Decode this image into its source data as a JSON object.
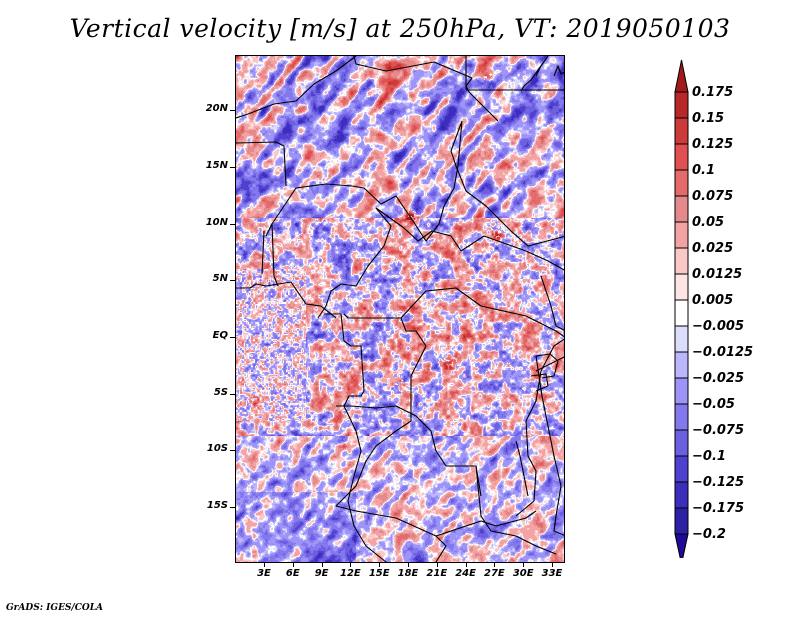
{
  "title": "Vertical velocity [m/s] at 250hPa, VT: 2019050103",
  "footer": "GrADS: IGES/COLA",
  "map": {
    "variable": "Vertical velocity",
    "units": "m/s",
    "level": "250hPa",
    "valid_time": "2019050103",
    "lon_range": [
      0,
      35
    ],
    "lat_range": [
      -20,
      24
    ],
    "y_ticks": [
      {
        "label": "20N",
        "lat": 20
      },
      {
        "label": "15N",
        "lat": 15
      },
      {
        "label": "10N",
        "lat": 10
      },
      {
        "label": "5N",
        "lat": 5
      },
      {
        "label": "EQ",
        "lat": 0
      },
      {
        "label": "5S",
        "lat": -5
      },
      {
        "label": "10S",
        "lat": -10
      },
      {
        "label": "15S",
        "lat": -15
      }
    ],
    "x_ticks": [
      {
        "label": "3E",
        "lon": 3
      },
      {
        "label": "6E",
        "lon": 6
      },
      {
        "label": "9E",
        "lon": 9
      },
      {
        "label": "12E",
        "lon": 12
      },
      {
        "label": "15E",
        "lon": 15
      },
      {
        "label": "18E",
        "lon": 18
      },
      {
        "label": "21E",
        "lon": 21
      },
      {
        "label": "24E",
        "lon": 24
      },
      {
        "label": "27E",
        "lon": 27
      },
      {
        "label": "30E",
        "lon": 30
      },
      {
        "label": "33E",
        "lon": 33
      }
    ]
  },
  "colorbar": {
    "labels": [
      "0.175",
      "0.15",
      "0.125",
      "0.1",
      "0.075",
      "0.05",
      "0.025",
      "0.0125",
      "0.005",
      "−0.005",
      "−0.0125",
      "−0.025",
      "−0.05",
      "−0.075",
      "−0.1",
      "−0.125",
      "−0.175",
      "−0.2"
    ],
    "levels": [
      0.175,
      0.15,
      0.125,
      0.1,
      0.075,
      0.05,
      0.025,
      0.0125,
      0.005,
      -0.005,
      -0.0125,
      -0.025,
      -0.05,
      -0.075,
      -0.1,
      -0.125,
      -0.175,
      -0.2
    ],
    "colors": [
      "#a41a1c",
      "#b92829",
      "#cc3a3a",
      "#e05050",
      "#e56a6a",
      "#e58a8c",
      "#f3a3a3",
      "#fbc8c8",
      "#fde5e5",
      "#ffffff",
      "#dcdcfc",
      "#bcb6fc",
      "#9e94f8",
      "#8478ee",
      "#6c5fe0",
      "#5040cf",
      "#3d2dbd",
      "#2e20a5",
      "#1e0b99"
    ]
  }
}
